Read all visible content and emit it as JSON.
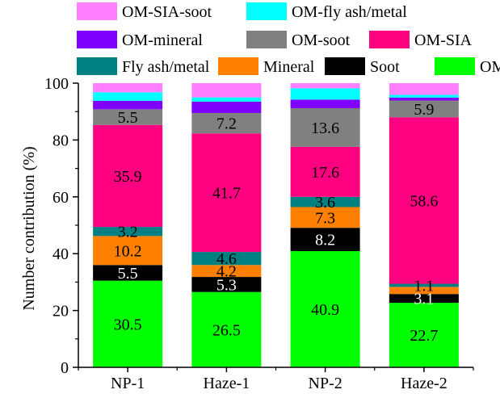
{
  "chart_data": {
    "type": "bar",
    "stacked": true,
    "ylabel": "Number contribution  (%)",
    "ylim": [
      0,
      100
    ],
    "yticks": [
      0,
      20,
      40,
      60,
      80,
      100
    ],
    "categories": [
      "NP-1",
      "Haze-1",
      "NP-2",
      "Haze-2"
    ],
    "legend": {
      "placement": "top",
      "rows": [
        [
          "OM-SIA-soot",
          "OM-fly ash/metal"
        ],
        [
          "OM-mineral",
          "OM-soot",
          "OM-SIA"
        ],
        [
          "Fly ash/metal",
          "Mineral",
          "Soot",
          "OM"
        ]
      ]
    },
    "series": [
      {
        "name": "OM",
        "color": "#00FF00",
        "values": [
          30.5,
          26.5,
          40.9,
          22.7
        ],
        "labels": [
          "30.5",
          "26.5",
          "40.9",
          "22.7"
        ],
        "label_color": "#000000"
      },
      {
        "name": "Soot",
        "color": "#000000",
        "values": [
          5.5,
          5.3,
          8.2,
          3.1
        ],
        "labels": [
          "5.5",
          "5.3",
          "8.2",
          "3.1"
        ],
        "label_color": "#ffffff"
      },
      {
        "name": "Mineral",
        "color": "#FF8000",
        "values": [
          10.2,
          4.2,
          7.3,
          2.5
        ],
        "labels": [
          "10.2",
          "4.2",
          "7.3",
          ""
        ],
        "label_color": "#000000"
      },
      {
        "name": "Fly ash/metal",
        "color": "#008080",
        "values": [
          3.2,
          4.6,
          3.6,
          1.1
        ],
        "labels": [
          "3.2",
          "4.6",
          "3.6",
          "1.1"
        ],
        "label_color": "#000000"
      },
      {
        "name": "OM-SIA",
        "color": "#FF0080",
        "values": [
          35.9,
          41.7,
          17.6,
          58.6
        ],
        "labels": [
          "35.9",
          "41.7",
          "17.6",
          "58.6"
        ],
        "label_color": "#000000"
      },
      {
        "name": "OM-soot",
        "color": "#808080",
        "values": [
          5.5,
          7.2,
          13.6,
          5.9
        ],
        "labels": [
          "5.5",
          "7.2",
          "13.6",
          "5.9"
        ],
        "label_color": "#000000"
      },
      {
        "name": "OM-mineral",
        "color": "#8000FF",
        "values": [
          3.0,
          4.0,
          3.0,
          1.0
        ],
        "labels": [
          "",
          "",
          "",
          ""
        ],
        "label_color": "#000000"
      },
      {
        "name": "OM-fly ash/metal",
        "color": "#00FFFF",
        "values": [
          3.0,
          1.5,
          4.0,
          1.0
        ],
        "labels": [
          "",
          "",
          "",
          ""
        ],
        "label_color": "#000000"
      },
      {
        "name": "OM-SIA-soot",
        "color": "#FF80FF",
        "values": [
          3.2,
          5.0,
          1.8,
          4.1
        ],
        "labels": [
          "",
          "",
          "",
          ""
        ],
        "label_color": "#000000"
      }
    ]
  }
}
